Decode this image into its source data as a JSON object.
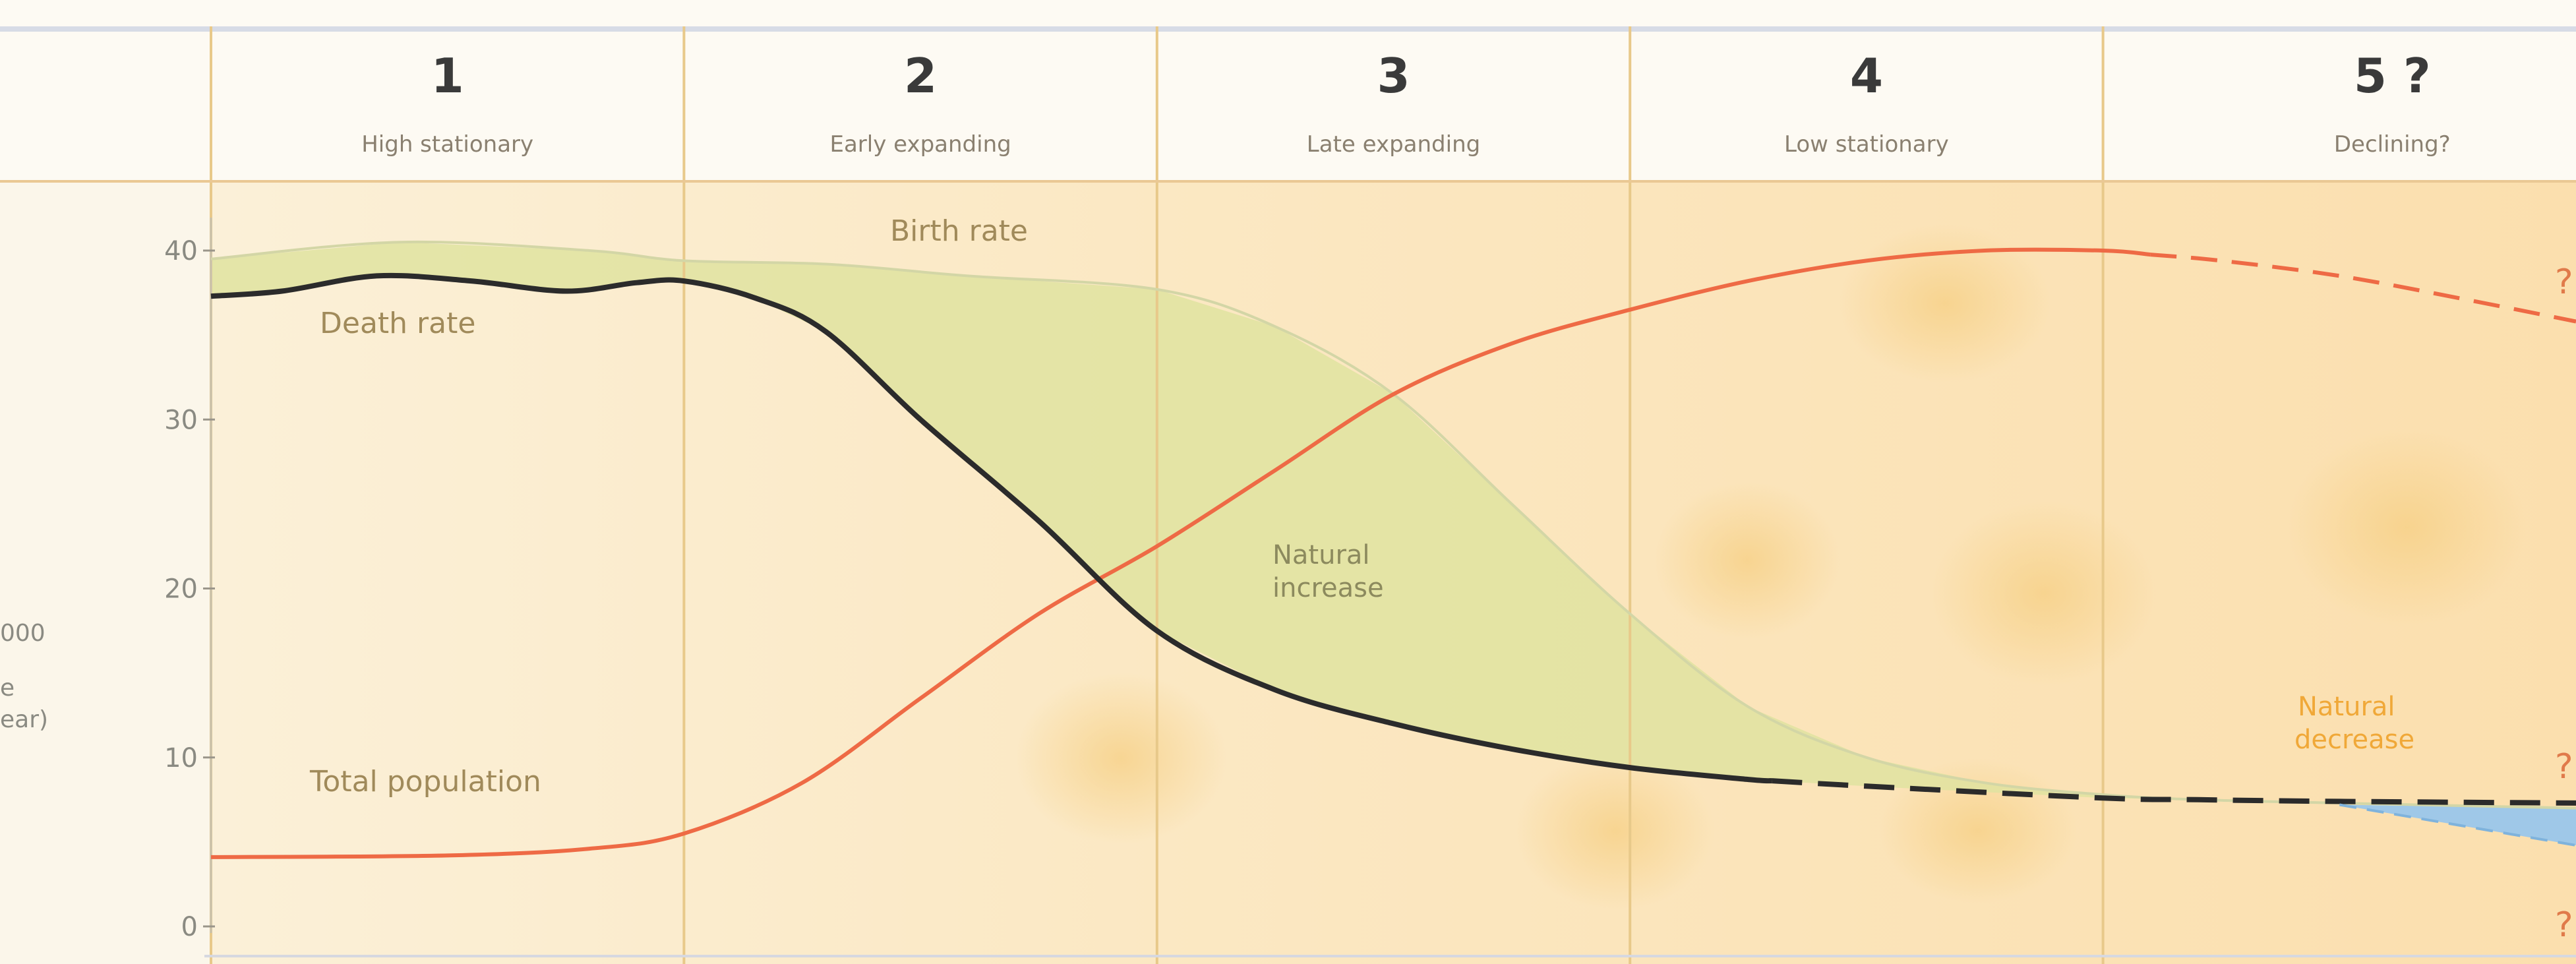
{
  "chart_data": {
    "type": "area",
    "title": "",
    "ylabel": "000 ... ear)",
    "ylim": [
      0,
      40
    ],
    "yticks": [
      0,
      10,
      20,
      30,
      40
    ],
    "stages": [
      {
        "number": "1",
        "label": "High stationary"
      },
      {
        "number": "2",
        "label": "Early expanding"
      },
      {
        "number": "3",
        "label": "Late expanding"
      },
      {
        "number": "4",
        "label": "Low stationary"
      },
      {
        "number": "5 ?",
        "label": "Declining?"
      }
    ],
    "x_domain": [
      0,
      5
    ],
    "series": [
      {
        "name": "Birth rate",
        "color": "#c8cf86",
        "points": [
          [
            0,
            39.5
          ],
          [
            0.4,
            40.5
          ],
          [
            0.8,
            40
          ],
          [
            1.0,
            39.4
          ],
          [
            1.3,
            39.2
          ],
          [
            1.6,
            38.5
          ],
          [
            2.0,
            37.7
          ],
          [
            2.25,
            35.5
          ],
          [
            2.5,
            31.5
          ],
          [
            2.75,
            25
          ],
          [
            3.0,
            18.5
          ],
          [
            3.25,
            13
          ],
          [
            3.5,
            10
          ],
          [
            3.75,
            8.5
          ],
          [
            4.0,
            7.8
          ],
          [
            4.2,
            7.5
          ],
          [
            4.5,
            7.3
          ],
          [
            5.0,
            7.0
          ]
        ]
      },
      {
        "name": "Death rate",
        "color": "#2b2b2b",
        "points": [
          [
            0,
            37.3
          ],
          [
            0.15,
            37.6
          ],
          [
            0.35,
            38.5
          ],
          [
            0.55,
            38.2
          ],
          [
            0.75,
            37.6
          ],
          [
            0.9,
            38.1
          ],
          [
            1.0,
            38.2
          ],
          [
            1.15,
            37.2
          ],
          [
            1.3,
            35.2
          ],
          [
            1.5,
            30
          ],
          [
            1.75,
            24
          ],
          [
            2.0,
            17.5
          ],
          [
            2.25,
            14
          ],
          [
            2.5,
            12
          ],
          [
            2.75,
            10.5
          ],
          [
            3.0,
            9.4
          ],
          [
            3.25,
            8.7
          ],
          [
            3.5,
            8.3
          ],
          [
            4.0,
            7.6
          ],
          [
            4.2,
            7.5
          ],
          [
            4.5,
            7.4
          ],
          [
            5.0,
            7.3
          ]
        ]
      },
      {
        "name": "Total population",
        "color": "#ee6a45",
        "points": [
          [
            0,
            4.1
          ],
          [
            0.5,
            4.2
          ],
          [
            0.8,
            4.6
          ],
          [
            1.0,
            5.5
          ],
          [
            1.25,
            8.5
          ],
          [
            1.5,
            13.5
          ],
          [
            1.75,
            18.5
          ],
          [
            2.0,
            22.5
          ],
          [
            2.25,
            27
          ],
          [
            2.5,
            31.5
          ],
          [
            2.75,
            34.5
          ],
          [
            3.0,
            36.5
          ],
          [
            3.25,
            38.2
          ],
          [
            3.5,
            39.4
          ],
          [
            3.75,
            40
          ],
          [
            4.0,
            40
          ],
          [
            4.25,
            39.4
          ],
          [
            4.5,
            38.5
          ],
          [
            4.75,
            37.2
          ],
          [
            5.0,
            35.8
          ]
        ]
      }
    ],
    "projection_start_x": 4.1,
    "annotations": {
      "birth_rate": "Birth rate",
      "death_rate": "Death rate",
      "total_population": "Total population",
      "natural_increase_1": "Natural",
      "natural_increase_2": "increase",
      "natural_decrease_1": "Natural",
      "natural_decrease_2": "decrease",
      "question_mark": "?"
    },
    "ylabel_lines": [
      "000",
      "e",
      "ear)"
    ],
    "colors": {
      "background": "#fbf6ea",
      "header": "#fdfaf3",
      "plot_bg": "#fbe9c8",
      "increase_fill": "#dfe3a0",
      "decrease_fill": "#9fc8e8",
      "grid": "#e8c98a"
    }
  }
}
